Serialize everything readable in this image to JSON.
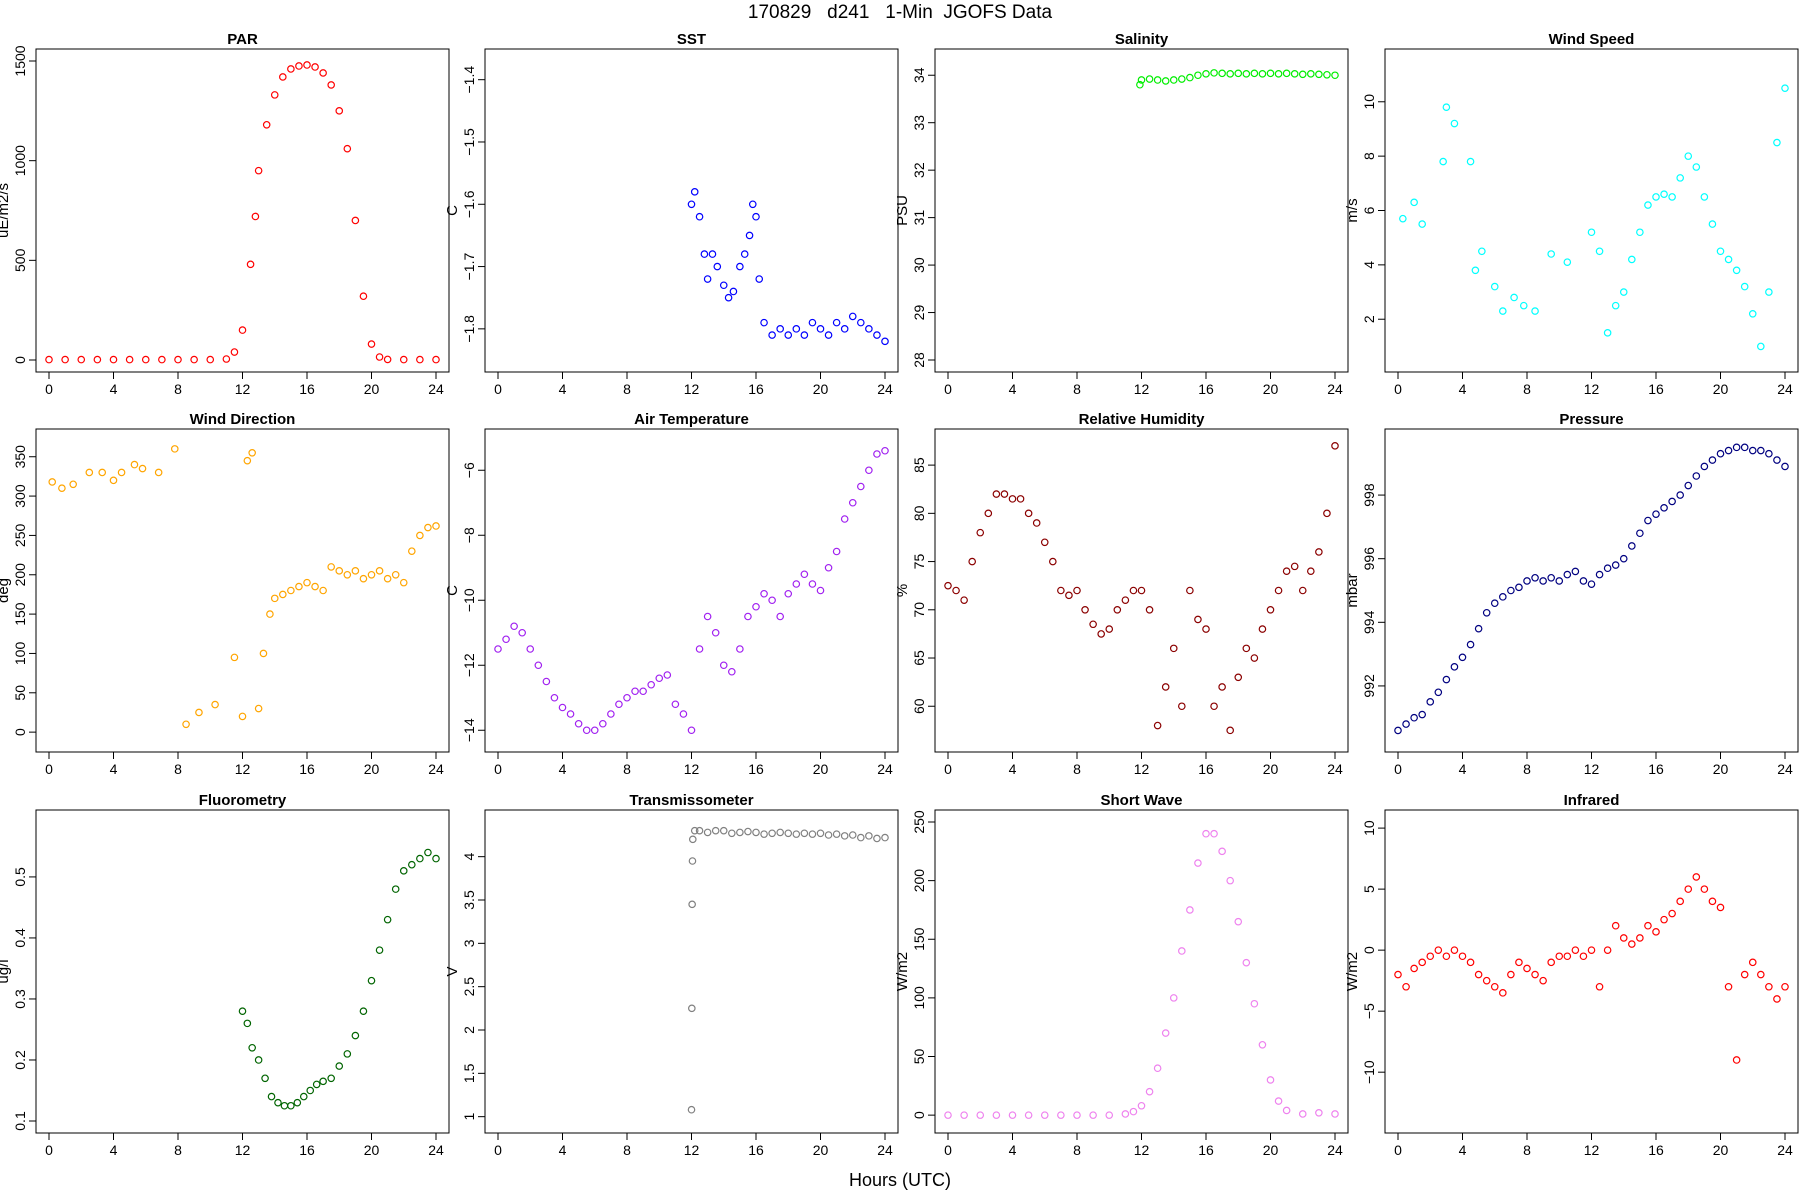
{
  "figure": {
    "title": "170829   d241   1-Min  JGOFS Data",
    "xlabel": "Hours (UTC)"
  },
  "chart_data": [
    {
      "type": "scatter",
      "title": "PAR",
      "ylabel": "uE/m2/s",
      "color": "#ff0000",
      "xlim": [
        0,
        24
      ],
      "ylim": [
        0,
        1500
      ],
      "xticks": [
        0,
        4,
        8,
        12,
        16,
        20,
        24
      ],
      "yticks": [
        0,
        500,
        1000,
        1500
      ],
      "x": [
        0,
        1,
        2,
        3,
        4,
        5,
        6,
        7,
        8,
        9,
        10,
        11,
        11.5,
        12,
        12.5,
        12.8,
        13,
        13.5,
        14,
        14.5,
        15,
        15.5,
        16,
        16.5,
        17,
        17.5,
        18,
        18.5,
        19,
        19.5,
        20,
        20.5,
        21,
        22,
        23,
        24
      ],
      "y": [
        2,
        2,
        2,
        2,
        2,
        2,
        2,
        2,
        2,
        2,
        2,
        5,
        40,
        150,
        480,
        720,
        950,
        1180,
        1330,
        1420,
        1460,
        1475,
        1480,
        1470,
        1440,
        1380,
        1250,
        1060,
        700,
        320,
        80,
        15,
        3,
        2,
        2,
        2
      ]
    },
    {
      "type": "scatter",
      "title": "SST",
      "ylabel": "C",
      "color": "#0000ff",
      "xlim": [
        0,
        24
      ],
      "ylim": [
        -1.85,
        -1.37
      ],
      "xticks": [
        0,
        4,
        8,
        12,
        16,
        20,
        24
      ],
      "yticks": [
        -1.8,
        -1.7,
        -1.6,
        -1.5,
        -1.4
      ],
      "x": [
        12,
        12.2,
        12.5,
        12.8,
        13,
        13.3,
        13.6,
        14,
        14.3,
        14.6,
        15,
        15.3,
        15.6,
        15.8,
        16,
        16.2,
        16.5,
        17,
        17.5,
        18,
        18.5,
        19,
        19.5,
        20,
        20.5,
        21,
        21.5,
        22,
        22.5,
        23,
        23.5,
        24
      ],
      "y": [
        -1.6,
        -1.58,
        -1.62,
        -1.68,
        -1.72,
        -1.68,
        -1.7,
        -1.73,
        -1.75,
        -1.74,
        -1.7,
        -1.68,
        -1.65,
        -1.6,
        -1.62,
        -1.72,
        -1.79,
        -1.81,
        -1.8,
        -1.81,
        -1.8,
        -1.81,
        -1.79,
        -1.8,
        -1.81,
        -1.79,
        -1.8,
        -1.78,
        -1.79,
        -1.8,
        -1.81,
        -1.82
      ]
    },
    {
      "type": "scatter",
      "title": "Salinity",
      "ylabel": "PSU",
      "color": "#00ee00",
      "xlim": [
        0,
        24
      ],
      "ylim": [
        28,
        34.3
      ],
      "xticks": [
        0,
        4,
        8,
        12,
        16,
        20,
        24
      ],
      "yticks": [
        28,
        29,
        30,
        31,
        32,
        33,
        34
      ],
      "x": [
        11.9,
        12,
        12.5,
        13,
        13.5,
        14,
        14.5,
        15,
        15.5,
        16,
        16.5,
        17,
        17.5,
        18,
        18.5,
        19,
        19.5,
        20,
        20.5,
        21,
        21.5,
        22,
        22.5,
        23,
        23.5,
        24
      ],
      "y": [
        33.8,
        33.9,
        33.92,
        33.9,
        33.88,
        33.9,
        33.92,
        33.95,
        34,
        34.03,
        34.05,
        34.04,
        34.03,
        34.04,
        34.03,
        34.04,
        34.03,
        34.04,
        34.03,
        34.04,
        34.03,
        34.02,
        34.03,
        34.02,
        34.01,
        34.0
      ]
    },
    {
      "type": "scatter",
      "title": "Wind Speed",
      "ylabel": "m/s",
      "color": "#00ffff",
      "xlim": [
        0,
        24
      ],
      "ylim": [
        0.5,
        11.5
      ],
      "xticks": [
        0,
        4,
        8,
        12,
        16,
        20,
        24
      ],
      "yticks": [
        2,
        4,
        6,
        8,
        10
      ],
      "x": [
        0.3,
        1,
        1.5,
        2.8,
        3,
        3.5,
        4.5,
        4.8,
        5.2,
        6,
        6.5,
        7.2,
        7.8,
        8.5,
        9.5,
        10.5,
        12,
        12.5,
        13,
        13.5,
        14,
        14.5,
        15,
        15.5,
        16,
        16.5,
        17,
        17.5,
        18,
        18.5,
        19,
        19.5,
        20,
        20.5,
        21,
        21.5,
        22,
        22.5,
        23,
        23.5,
        24
      ],
      "y": [
        5.7,
        6.3,
        5.5,
        7.8,
        9.8,
        9.2,
        7.8,
        3.8,
        4.5,
        3.2,
        2.3,
        2.8,
        2.5,
        2.3,
        4.4,
        4.1,
        5.2,
        4.5,
        1.5,
        2.5,
        3,
        4.2,
        5.2,
        6.2,
        6.5,
        6.6,
        6.5,
        7.2,
        8,
        7.6,
        6.5,
        5.5,
        4.5,
        4.2,
        3.8,
        3.2,
        2.2,
        1,
        3,
        8.5,
        10.5
      ]
    },
    {
      "type": "scatter",
      "title": "Wind Direction",
      "ylabel": "deg",
      "color": "#ffa500",
      "xlim": [
        0,
        24
      ],
      "ylim": [
        -10,
        370
      ],
      "xticks": [
        0,
        4,
        8,
        12,
        16,
        20,
        24
      ],
      "yticks": [
        0,
        50,
        100,
        150,
        200,
        250,
        300,
        350
      ],
      "x": [
        0.2,
        0.8,
        1.5,
        2.5,
        3.3,
        4,
        4.5,
        5.3,
        5.8,
        6.8,
        7.8,
        8.5,
        9.3,
        10.3,
        11.5,
        12,
        12.3,
        12.6,
        13,
        13.3,
        13.7,
        14,
        14.5,
        15,
        15.5,
        16,
        16.5,
        17,
        17.5,
        18,
        18.5,
        19,
        19.5,
        20,
        20.5,
        21,
        21.5,
        22,
        22.5,
        23,
        23.5,
        24
      ],
      "y": [
        318,
        310,
        315,
        330,
        330,
        320,
        330,
        340,
        335,
        330,
        360,
        10,
        25,
        35,
        95,
        20,
        345,
        355,
        30,
        100,
        150,
        170,
        175,
        180,
        185,
        190,
        185,
        180,
        210,
        205,
        200,
        205,
        195,
        200,
        205,
        195,
        200,
        190,
        230,
        250,
        260,
        262
      ]
    },
    {
      "type": "scatter",
      "title": "Air Temperature",
      "ylabel": "C",
      "color": "#a020f0",
      "xlim": [
        0,
        24
      ],
      "ylim": [
        -14.3,
        -5.1
      ],
      "xticks": [
        0,
        4,
        8,
        12,
        16,
        20,
        24
      ],
      "yticks": [
        -14,
        -12,
        -10,
        -8,
        -6
      ],
      "x": [
        0,
        0.5,
        1,
        1.5,
        2,
        2.5,
        3,
        3.5,
        4,
        4.5,
        5,
        5.5,
        6,
        6.5,
        7,
        7.5,
        8,
        8.5,
        9,
        9.5,
        10,
        10.5,
        11,
        11.5,
        12,
        12.5,
        13,
        13.5,
        14,
        14.5,
        15,
        15.5,
        16,
        16.5,
        17,
        17.5,
        18,
        18.5,
        19,
        19.5,
        20,
        20.5,
        21,
        21.5,
        22,
        22.5,
        23,
        23.5,
        24
      ],
      "y": [
        -11.5,
        -11.2,
        -10.8,
        -11,
        -11.5,
        -12,
        -12.5,
        -13,
        -13.3,
        -13.5,
        -13.8,
        -14,
        -14,
        -13.8,
        -13.5,
        -13.2,
        -13,
        -12.8,
        -12.8,
        -12.6,
        -12.4,
        -12.3,
        -13.2,
        -13.5,
        -14,
        -11.5,
        -10.5,
        -11,
        -12,
        -12.2,
        -11.5,
        -10.5,
        -10.2,
        -9.8,
        -10,
        -10.5,
        -9.8,
        -9.5,
        -9.2,
        -9.5,
        -9.7,
        -9,
        -8.5,
        -7.5,
        -7,
        -6.5,
        -6,
        -5.5,
        -5.4
      ]
    },
    {
      "type": "scatter",
      "title": "Relative Humidity",
      "ylabel": "%",
      "color": "#8b0000",
      "xlim": [
        0,
        24
      ],
      "ylim": [
        56.5,
        87.5
      ],
      "xticks": [
        0,
        4,
        8,
        12,
        16,
        20,
        24
      ],
      "yticks": [
        60,
        65,
        70,
        75,
        80,
        85
      ],
      "x": [
        0,
        0.5,
        1,
        1.5,
        2,
        2.5,
        3,
        3.5,
        4,
        4.5,
        5,
        5.5,
        6,
        6.5,
        7,
        7.5,
        8,
        8.5,
        9,
        9.5,
        10,
        10.5,
        11,
        11.5,
        12,
        12.5,
        13,
        13.5,
        14,
        14.5,
        15,
        15.5,
        16,
        16.5,
        17,
        17.5,
        18,
        18.5,
        19,
        19.5,
        20,
        20.5,
        21,
        21.5,
        22,
        22.5,
        23,
        23.5,
        24
      ],
      "y": [
        72.5,
        72,
        71,
        75,
        78,
        80,
        82,
        82,
        81.5,
        81.5,
        80,
        79,
        77,
        75,
        72,
        71.5,
        72,
        70,
        68.5,
        67.5,
        68,
        70,
        71,
        72,
        72,
        70,
        58,
        62,
        66,
        60,
        72,
        69,
        68,
        60,
        62,
        57.5,
        63,
        66,
        65,
        68,
        70,
        72,
        74,
        74.5,
        72,
        74,
        76,
        80,
        87
      ]
    },
    {
      "type": "scatter",
      "title": "Pressure",
      "ylabel": "mbar",
      "color": "#000080",
      "xlim": [
        0,
        24
      ],
      "ylim": [
        990.3,
        999.7
      ],
      "xticks": [
        0,
        4,
        8,
        12,
        16,
        20,
        24
      ],
      "yticks": [
        992,
        994,
        996,
        998
      ],
      "x": [
        0,
        0.5,
        1,
        1.5,
        2,
        2.5,
        3,
        3.5,
        4,
        4.5,
        5,
        5.5,
        6,
        6.5,
        7,
        7.5,
        8,
        8.5,
        9,
        9.5,
        10,
        10.5,
        11,
        11.5,
        12,
        12.5,
        13,
        13.5,
        14,
        14.5,
        15,
        15.5,
        16,
        16.5,
        17,
        17.5,
        18,
        18.5,
        19,
        19.5,
        20,
        20.5,
        21,
        21.5,
        22,
        22.5,
        23,
        23.5,
        24
      ],
      "y": [
        990.6,
        990.8,
        991,
        991.1,
        991.5,
        991.8,
        992.2,
        992.6,
        992.9,
        993.3,
        993.8,
        994.3,
        994.6,
        994.8,
        995,
        995.1,
        995.3,
        995.4,
        995.3,
        995.4,
        995.3,
        995.5,
        995.6,
        995.3,
        995.2,
        995.5,
        995.7,
        995.8,
        996,
        996.4,
        996.8,
        997.2,
        997.4,
        997.6,
        997.8,
        998,
        998.3,
        998.6,
        998.9,
        999.1,
        999.3,
        999.4,
        999.5,
        999.5,
        999.4,
        999.4,
        999.3,
        999.1,
        998.9
      ]
    },
    {
      "type": "scatter",
      "title": "Fluorometry",
      "ylabel": "ug/l",
      "color": "#006400",
      "xlim": [
        0,
        24
      ],
      "ylim": [
        0.1,
        0.59
      ],
      "xticks": [
        0,
        4,
        8,
        12,
        16,
        20,
        24
      ],
      "yticks": [
        0.1,
        0.2,
        0.3,
        0.4,
        0.5
      ],
      "x": [
        12,
        12.3,
        12.6,
        13,
        13.4,
        13.8,
        14.2,
        14.6,
        15,
        15.4,
        15.8,
        16.2,
        16.6,
        17,
        17.5,
        18,
        18.5,
        19,
        19.5,
        20,
        20.5,
        21,
        21.5,
        22,
        22.5,
        23,
        23.5,
        24
      ],
      "y": [
        0.28,
        0.26,
        0.22,
        0.2,
        0.17,
        0.14,
        0.13,
        0.125,
        0.125,
        0.13,
        0.14,
        0.15,
        0.16,
        0.165,
        0.17,
        0.19,
        0.21,
        0.24,
        0.28,
        0.33,
        0.38,
        0.43,
        0.48,
        0.51,
        0.52,
        0.53,
        0.54,
        0.53
      ]
    },
    {
      "type": "scatter",
      "title": "Transmissometer",
      "ylabel": "V",
      "color": "#808080",
      "xlim": [
        0,
        24
      ],
      "ylim": [
        0.95,
        4.4
      ],
      "xticks": [
        0,
        4,
        8,
        12,
        16,
        20,
        24
      ],
      "yticks": [
        1.0,
        1.5,
        2.0,
        2.5,
        3.0,
        3.5,
        4.0
      ],
      "x": [
        12,
        12.02,
        12.04,
        12.06,
        12.08,
        12.2,
        12.5,
        13,
        13.5,
        14,
        14.5,
        15,
        15.5,
        16,
        16.5,
        17,
        17.5,
        18,
        18.5,
        19,
        19.5,
        20,
        20.5,
        21,
        21.5,
        22,
        22.5,
        23,
        23.5,
        24
      ],
      "y": [
        1.08,
        2.25,
        3.45,
        3.95,
        4.2,
        4.3,
        4.3,
        4.28,
        4.3,
        4.3,
        4.27,
        4.28,
        4.29,
        4.28,
        4.26,
        4.27,
        4.28,
        4.27,
        4.26,
        4.27,
        4.26,
        4.27,
        4.25,
        4.26,
        4.24,
        4.25,
        4.22,
        4.24,
        4.21,
        4.22
      ]
    },
    {
      "type": "scatter",
      "title": "Short Wave",
      "ylabel": "W/m2",
      "color": "#ee82ee",
      "xlim": [
        0,
        24
      ],
      "ylim": [
        -5,
        250
      ],
      "xticks": [
        0,
        4,
        8,
        12,
        16,
        20,
        24
      ],
      "yticks": [
        0,
        50,
        100,
        150,
        200,
        250
      ],
      "x": [
        0,
        1,
        2,
        3,
        4,
        5,
        6,
        7,
        8,
        9,
        10,
        11,
        11.5,
        12,
        12.5,
        13,
        13.5,
        14,
        14.5,
        15,
        15.5,
        16,
        16.5,
        17,
        17.5,
        18,
        18.5,
        19,
        19.5,
        20,
        20.5,
        21,
        22,
        23,
        24
      ],
      "y": [
        0,
        0,
        0,
        0,
        0,
        0,
        0,
        0,
        0,
        0,
        0,
        1,
        3,
        8,
        20,
        40,
        70,
        100,
        140,
        175,
        215,
        240,
        240,
        225,
        200,
        165,
        130,
        95,
        60,
        30,
        12,
        4,
        1,
        2,
        1
      ]
    },
    {
      "type": "scatter",
      "title": "Infrared",
      "ylabel": "W/m2",
      "color": "#ff0000",
      "xlim": [
        0,
        24
      ],
      "ylim": [
        -14,
        10.5
      ],
      "xticks": [
        0,
        4,
        8,
        12,
        16,
        20,
        24
      ],
      "yticks": [
        -10,
        -5,
        0,
        5,
        10
      ],
      "x": [
        0,
        0.5,
        1,
        1.5,
        2,
        2.5,
        3,
        3.5,
        4,
        4.5,
        5,
        5.5,
        6,
        6.5,
        7,
        7.5,
        8,
        8.5,
        9,
        9.5,
        10,
        10.5,
        11,
        11.5,
        12,
        12.5,
        13,
        13.5,
        14,
        14.5,
        15,
        15.5,
        16,
        16.5,
        17,
        17.5,
        18,
        18.5,
        19,
        19.5,
        20,
        20.5,
        21,
        21.5,
        22,
        22.5,
        23,
        23.5,
        24
      ],
      "y": [
        -2,
        -3,
        -1.5,
        -1,
        -0.5,
        0,
        -0.5,
        0,
        -0.5,
        -1,
        -2,
        -2.5,
        -3,
        -3.5,
        -2,
        -1,
        -1.5,
        -2,
        -2.5,
        -1,
        -0.5,
        -0.5,
        0,
        -0.5,
        0,
        -3,
        0,
        2,
        1,
        0.5,
        1,
        2,
        1.5,
        2.5,
        3,
        4,
        5,
        6,
        5,
        4,
        3.5,
        -3,
        -9,
        -2,
        -1,
        -2,
        -3,
        -4,
        -3
      ]
    }
  ]
}
